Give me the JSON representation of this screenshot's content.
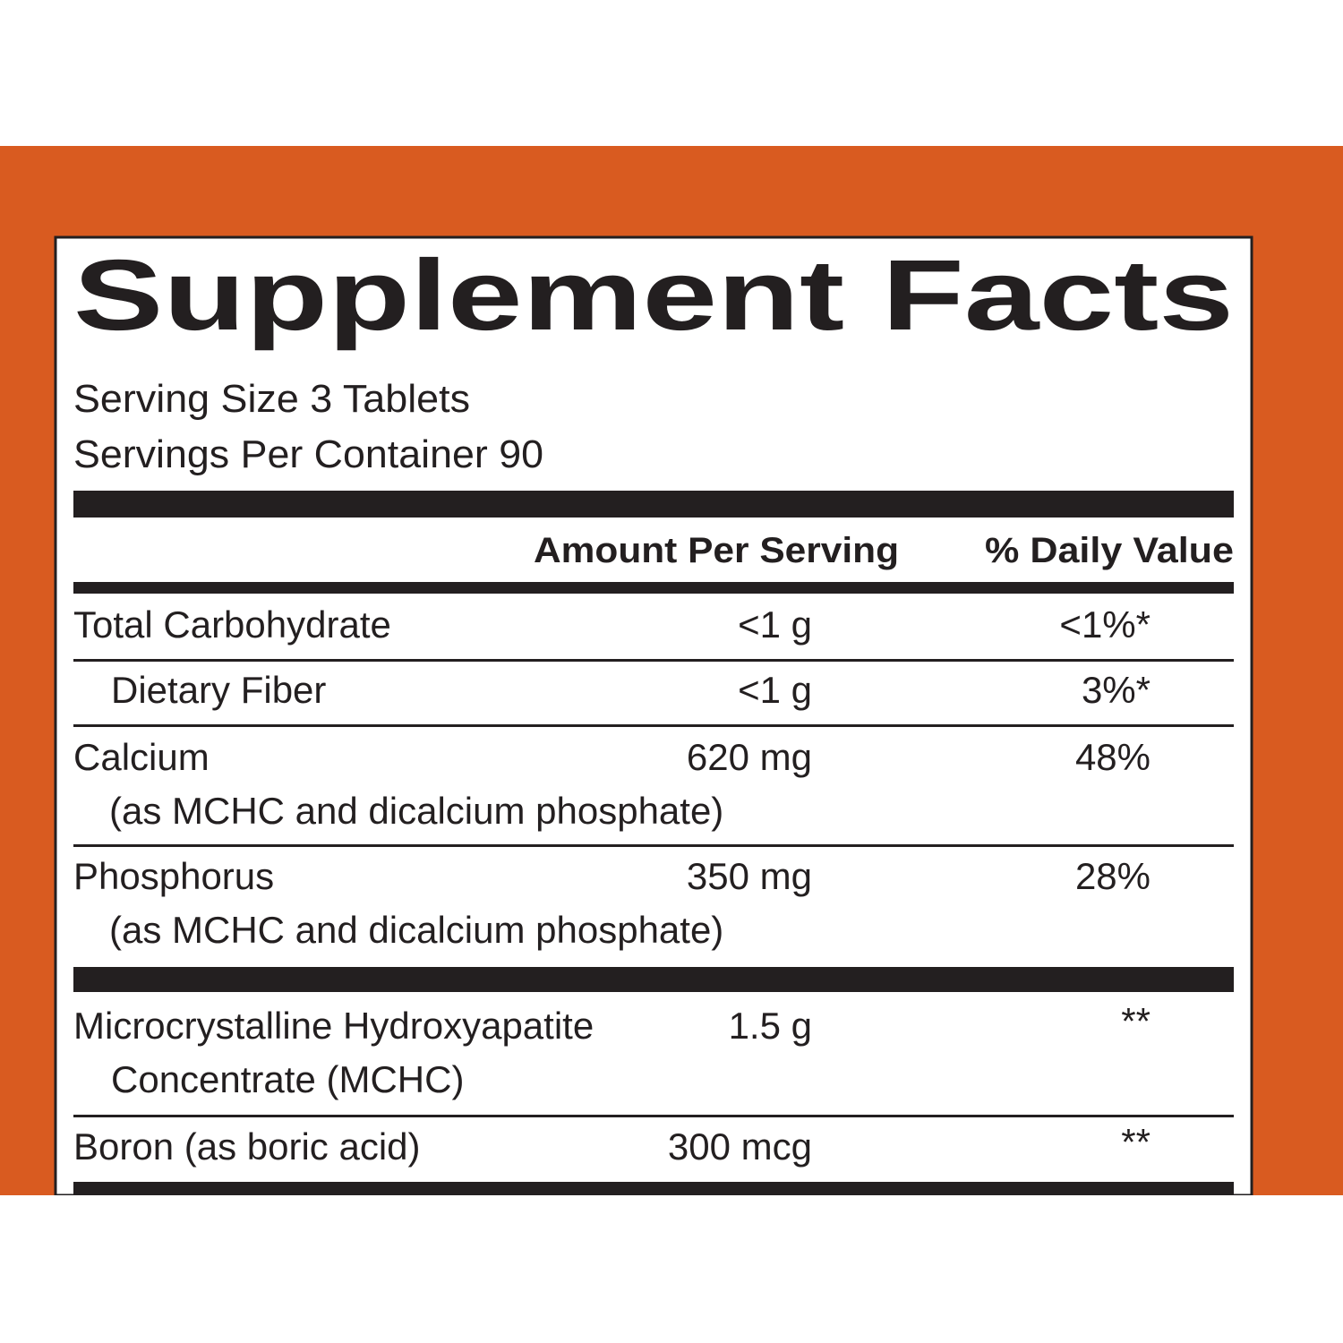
{
  "header": {
    "title": "Supplement Facts",
    "serving_size": "Serving Size 3 Tablets",
    "servings_per_container": "Servings Per Container 90"
  },
  "table": {
    "columns": [
      "Amount Per Serving",
      "% Daily Value"
    ],
    "rows": [
      {
        "name": "Total Carbohydrate",
        "amount": "<1 g",
        "daily_value": "<1%*"
      },
      {
        "name": "Dietary Fiber",
        "amount": "<1 g",
        "daily_value": "3%*"
      },
      {
        "name": "Calcium",
        "detail": "(as MCHC and dicalcium phosphate)",
        "amount": "620 mg",
        "daily_value": "48%"
      },
      {
        "name": "Phosphorus",
        "detail": "(as MCHC and dicalcium phosphate)",
        "amount": "350 mg",
        "daily_value": "28%"
      },
      {
        "name": "Microcrystalline Hydroxyapatite",
        "detail": "Concentrate (MCHC)",
        "amount": "1.5 g",
        "daily_value": "**"
      },
      {
        "name": "Boron (as boric acid)",
        "amount": "300 mcg",
        "daily_value": "**"
      }
    ]
  }
}
